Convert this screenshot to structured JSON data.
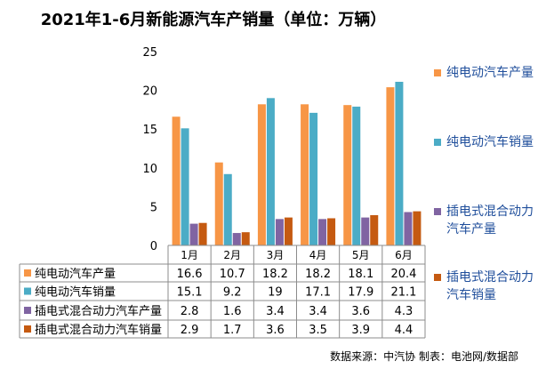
{
  "chart_data": {
    "type": "bar",
    "title": "2021年1-6月新能源汽车产销量（单位：万辆）",
    "categories": [
      "1月",
      "2月",
      "3月",
      "4月",
      "5月",
      "6月"
    ],
    "ylim": [
      0,
      25
    ],
    "yticks": [
      0,
      5,
      10,
      15,
      20,
      25
    ],
    "grid": false,
    "legend_position": "right",
    "data_table": true,
    "series": [
      {
        "name": "纯电动汽车产量",
        "color": "#f79646",
        "values": [
          16.6,
          10.7,
          18.2,
          18.2,
          18.1,
          20.4
        ]
      },
      {
        "name": "纯电动汽车销量",
        "color": "#4bacc6",
        "values": [
          15.1,
          9.2,
          19,
          17.1,
          17.9,
          21.1
        ]
      },
      {
        "name": "插电式混合动力汽车产量",
        "color": "#8064a2",
        "values": [
          2.8,
          1.6,
          3.4,
          3.4,
          3.6,
          4.3
        ]
      },
      {
        "name": "插电式混合动力汽车销量",
        "color": "#c55a11",
        "values": [
          2.9,
          1.7,
          3.6,
          3.5,
          3.9,
          4.4
        ]
      }
    ]
  },
  "footer": "数据来源：中汽协 制表：电池网/数据部"
}
